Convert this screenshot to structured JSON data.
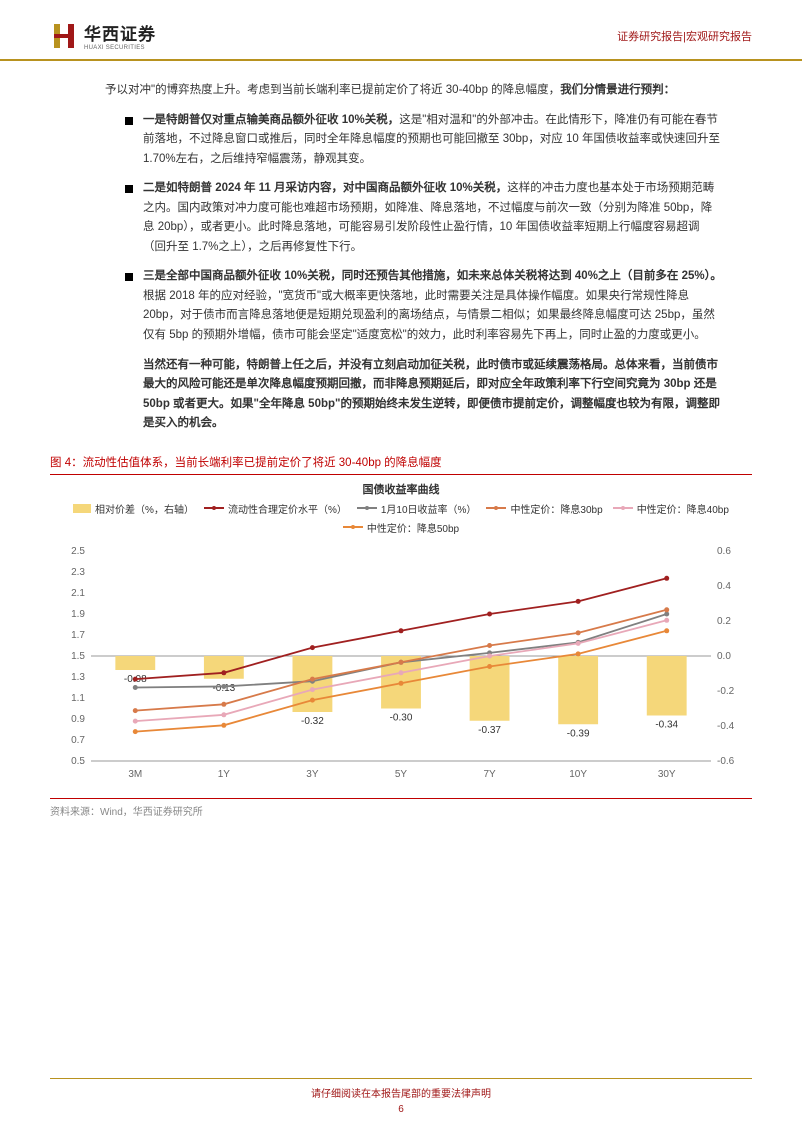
{
  "header": {
    "logo_cn": "华西证券",
    "logo_en": "HUAXI SECURITIES",
    "right_text": "证券研究报告|宏观研究报告"
  },
  "body": {
    "intro": "予以对冲\"的博弈热度上升。考虑到当前长端利率已提前定价了将近 30-40bp 的降息幅度，",
    "intro_bold": "我们分情景进行预判：",
    "bullets": [
      {
        "lead": "一是特朗普仅对重点输美商品额外征收 10%关税，",
        "rest": "这是\"相对温和\"的外部冲击。在此情形下，降准仍有可能在春节前落地，不过降息窗口或推后，同时全年降息幅度的预期也可能回撤至 30bp，对应 10 年国债收益率或快速回升至 1.70%左右，之后维持窄幅震荡，静观其变。"
      },
      {
        "lead": "二是如特朗普 2024 年 11 月采访内容，对中国商品额外征收 10%关税，",
        "rest": "这样的冲击力度也基本处于市场预期范畴之内。国内政策对冲力度可能也难超市场预期，如降准、降息落地，不过幅度与前次一致（分别为降准 50bp，降息 20bp），或者更小。此时降息落地，可能容易引发阶段性止盈行情，10 年国债收益率短期上行幅度容易超调（回升至 1.7%之上），之后再修复性下行。"
      },
      {
        "lead": "三是全部中国商品额外征收 10%关税，同时还预告其他措施，如未来总体关税将达到 40%之上（目前多在 25%）。",
        "rest": "根据 2018 年的应对经验，\"宽货币\"或大概率更快落地，此时需要关注是具体操作幅度。如果央行常规性降息 20bp，对于债市而言降息落地便是短期兑现盈利的离场结点，与情景二相似；如果最终降息幅度可达 25bp，虽然仅有 5bp 的预期外增幅，债市可能会坚定\"适度宽松\"的效力，此时利率容易先下再上，同时止盈的力度或更小。"
      }
    ],
    "conclusion": "当然还有一种可能，特朗普上任之后，并没有立刻启动加征关税，此时债市或延续震荡格局。总体来看，当前债市最大的风险可能还是单次降息幅度预期回撤，而非降息预期延后，即对应全年政策利率下行空间究竟为 30bp 还是 50bp 或者更大。如果\"全年降息 50bp\"的预期始终未发生逆转，即便债市提前定价，调整幅度也较为有限，调整即是买入的机会。"
  },
  "figure": {
    "title": "图 4：流动性估值体系，当前长端利率已提前定价了将近 30-40bp 的降息幅度",
    "chart_title": "国债收益率曲线",
    "source": "资料来源：Wind，华西证券研究所",
    "legend": [
      {
        "label": "相对价差（%，右轴）",
        "type": "bar",
        "color": "#f5d77a"
      },
      {
        "label": "流动性合理定价水平（%）",
        "type": "line",
        "color": "#a02020"
      },
      {
        "label": "1月10日收益率（%）",
        "type": "line",
        "color": "#808080"
      },
      {
        "label": "中性定价：降息30bp",
        "type": "line",
        "color": "#d77a4a"
      },
      {
        "label": "中性定价：降息40bp",
        "type": "line",
        "color": "#e8a8b8"
      },
      {
        "label": "中性定价：降息50bp",
        "type": "line",
        "color": "#e88838"
      }
    ],
    "categories": [
      "3M",
      "1Y",
      "3Y",
      "5Y",
      "7Y",
      "10Y",
      "30Y"
    ],
    "y_left": {
      "min": 0.5,
      "max": 2.5,
      "step": 0.2
    },
    "y_right": {
      "min": -0.6,
      "max": 0.6,
      "step": 0.2
    },
    "bars": {
      "values": [
        -0.08,
        -0.13,
        -0.32,
        -0.3,
        -0.37,
        -0.39,
        -0.34
      ],
      "color": "#f5d77a",
      "width": 0.45
    },
    "lines": [
      {
        "name": "liquidity",
        "color": "#a02020",
        "values": [
          1.28,
          1.34,
          1.58,
          1.74,
          1.9,
          2.02,
          2.24
        ]
      },
      {
        "name": "jan10",
        "color": "#808080",
        "values": [
          1.2,
          1.21,
          1.26,
          1.44,
          1.53,
          1.63,
          1.9
        ]
      },
      {
        "name": "cut30",
        "color": "#d77a4a",
        "values": [
          0.98,
          1.04,
          1.28,
          1.44,
          1.6,
          1.72,
          1.94
        ]
      },
      {
        "name": "cut40",
        "color": "#e8a8b8",
        "values": [
          0.88,
          0.94,
          1.18,
          1.34,
          1.5,
          1.62,
          1.84
        ]
      },
      {
        "name": "cut50",
        "color": "#e88838",
        "values": [
          0.78,
          0.84,
          1.08,
          1.24,
          1.4,
          1.52,
          1.74
        ]
      }
    ],
    "tick_fontsize": 10,
    "label_fontsize": 10,
    "grid_color": "#cccccc"
  },
  "footer": {
    "disclaimer": "请仔细阅读在本报告尾部的重要法律声明",
    "page": "6"
  }
}
